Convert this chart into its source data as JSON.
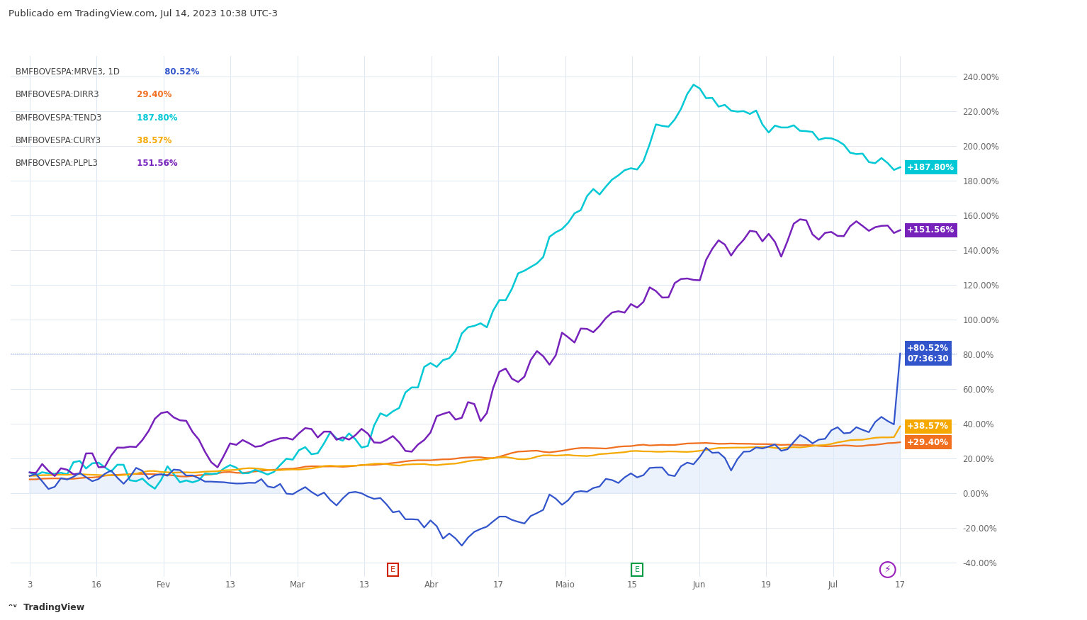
{
  "title": "Publicado em TradingView.com, Jul 14, 2023 10:38 UTC-3",
  "legend": [
    {
      "label": "BMFBOVESPA:MRVE3, 1D",
      "value": "80.52%",
      "color": "#3355cc"
    },
    {
      "label": "BMFBOVESPA:DIRR3",
      "value": "29.40%",
      "color": "#f07020"
    },
    {
      "label": "BMFBOVESPA:TEND3",
      "value": "187.80%",
      "color": "#00c8d4"
    },
    {
      "label": "BMFBOVESPA:CURY3",
      "value": "38.57%",
      "color": "#f5a800"
    },
    {
      "label": "BMFBOVESPA:PLPL3",
      "value": "151.56%",
      "color": "#7722bb"
    }
  ],
  "yticks": [
    -40,
    -20,
    0,
    20,
    40,
    60,
    80,
    100,
    120,
    140,
    160,
    180,
    200,
    220,
    240
  ],
  "ylim": [
    -48,
    252
  ],
  "xlim_left": -3,
  "xlim_right": 148,
  "background_color": "#ffffff",
  "grid_color": "#dde8f2",
  "dotted_line_y": 80.52,
  "mrve3_color": "#3355cc",
  "mrve3_fill_color": "#dce8fa",
  "dirr3_color": "#f07020",
  "tend3_color": "#00c8d4",
  "cury3_color": "#f5a800",
  "plpl3_color": "#7722bb",
  "xtick_labels": [
    "3",
    "16",
    "Fev",
    "13",
    "Mar",
    "13",
    "Abr",
    "17",
    "Maio",
    "15",
    "Jun",
    "19",
    "Jul",
    "17"
  ],
  "n_points": 140
}
